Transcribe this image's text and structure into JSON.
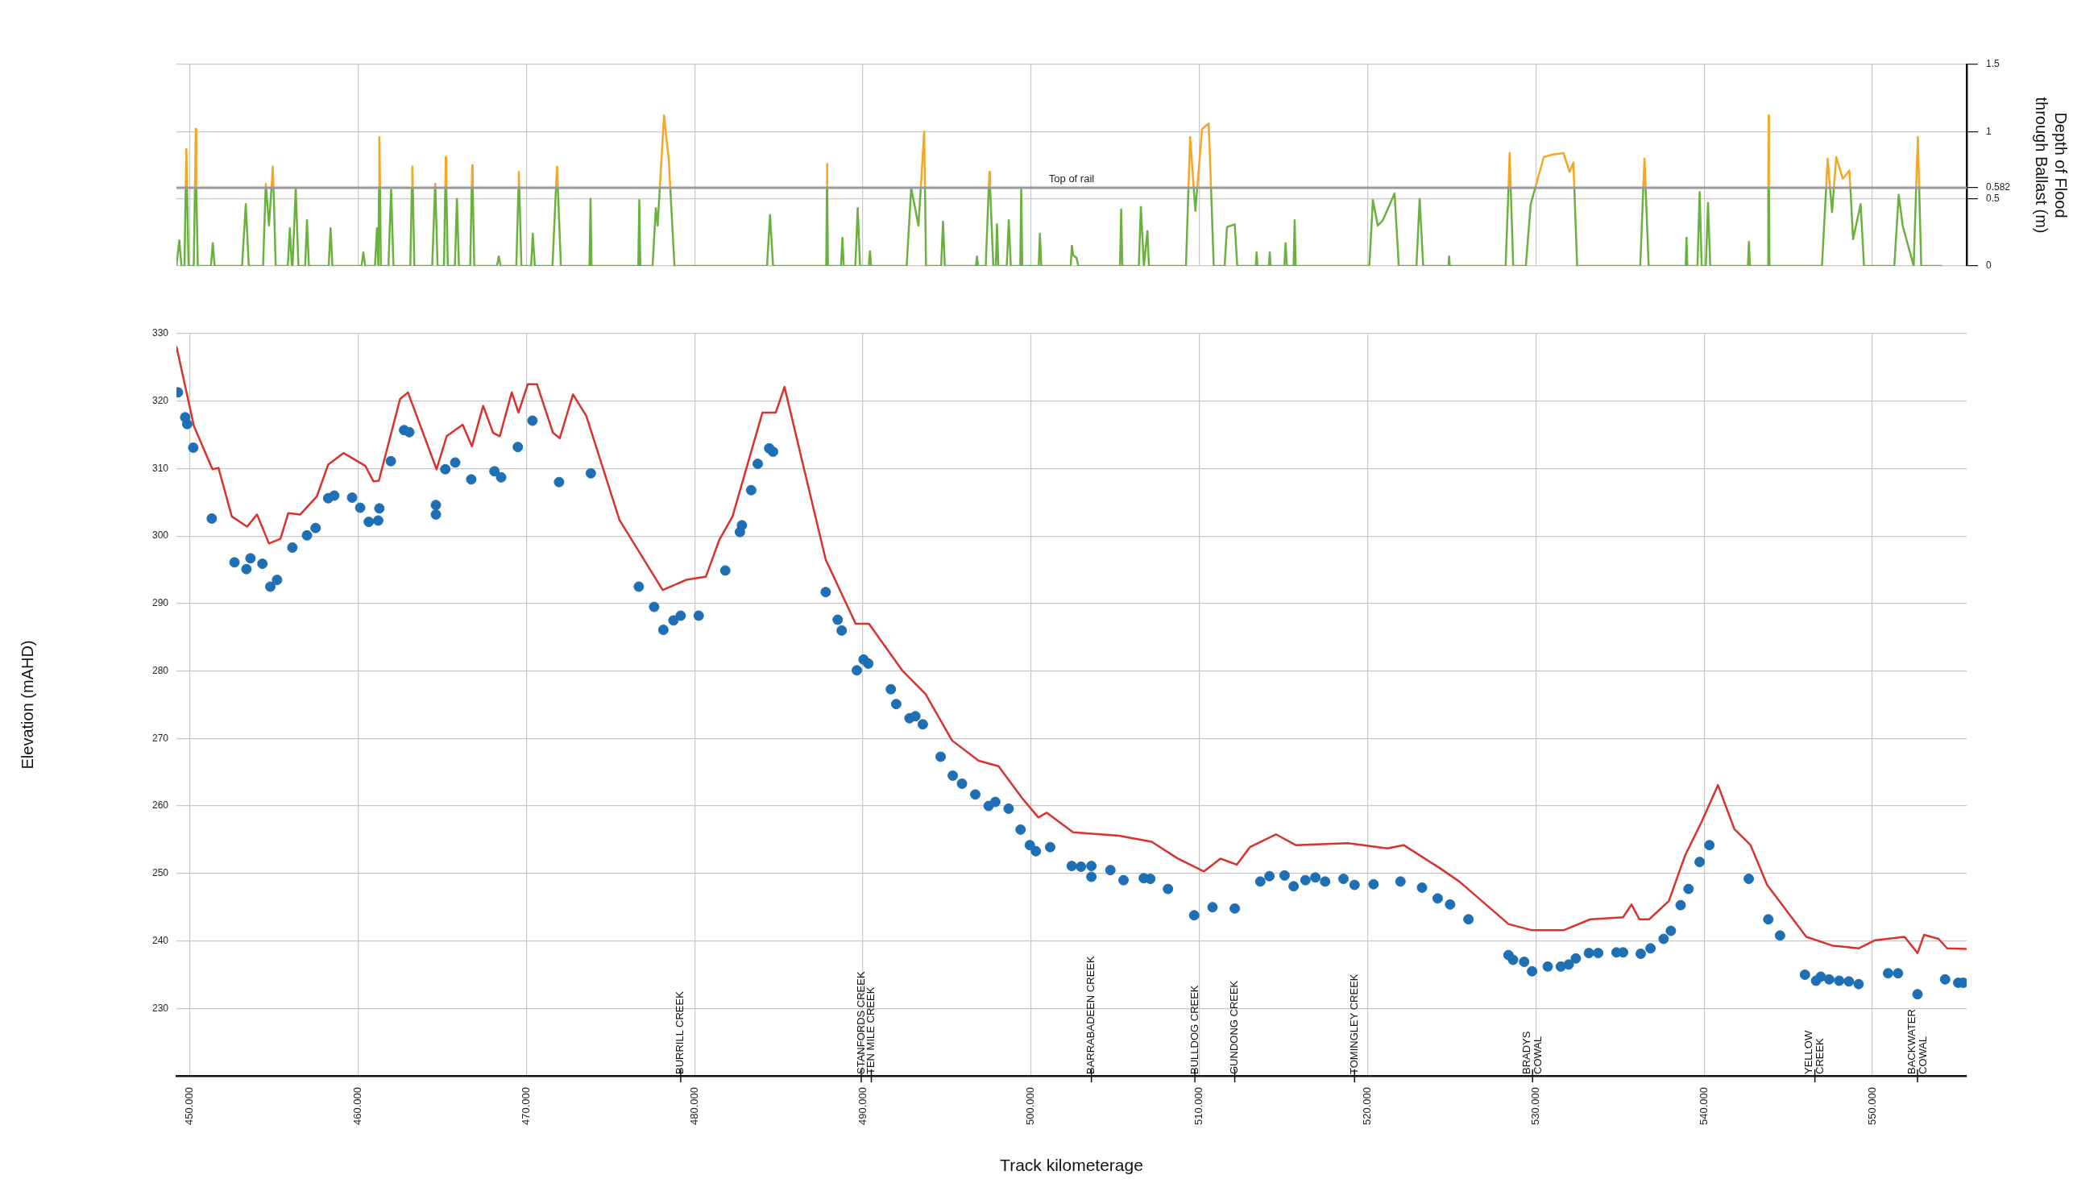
{
  "chart_data": [
    {
      "type": "line",
      "ylabel": "Depth of Flood through Ballast (m)",
      "xlim": [
        449.2,
        555.6
      ],
      "ylim": [
        0,
        1.5
      ],
      "xticks": [
        450,
        460,
        470,
        480,
        490,
        500,
        510,
        520,
        530,
        540,
        550
      ],
      "yticks": [
        0,
        0.5,
        0.582,
        1,
        1.5
      ],
      "tick_labels": "y",
      "grid": true,
      "ref_lines": [
        {
          "axis": "y",
          "value": 0.582,
          "label": "Top of rail",
          "color": "#9a9a9a"
        }
      ],
      "x": [
        449.2,
        449.37,
        449.5,
        449.68,
        449.75,
        449.79,
        449.83,
        449.92,
        450.23,
        450.3,
        450.35,
        450.38,
        450.47,
        451.25,
        451.36,
        451.47,
        453.1,
        453.32,
        453.5,
        454.35,
        454.5,
        454.51,
        454.53,
        454.7,
        454.85,
        454.93,
        454.97,
        455.1,
        455.82,
        455.94,
        456.06,
        456.1,
        456.29,
        456.45,
        456.85,
        456.96,
        457.07,
        458.25,
        458.36,
        458.47,
        460.2,
        460.31,
        460.42,
        461.0,
        461.12,
        461.2,
        461.24,
        461.26,
        461.3,
        461.35,
        461.8,
        461.96,
        462.1,
        463.1,
        463.19,
        463.22,
        463.25,
        463.34,
        464.4,
        464.57,
        464.58,
        464.59,
        464.72,
        465.1,
        465.18,
        465.21,
        465.24,
        465.33,
        465.75,
        465.87,
        465.99,
        466.66,
        466.75,
        466.78,
        466.81,
        466.9,
        468.25,
        468.36,
        468.47,
        469.4,
        469.53,
        469.55,
        469.58,
        469.7,
        470.28,
        470.38,
        470.5,
        471.55,
        471.76,
        471.82,
        471.87,
        472.05,
        473.75,
        473.81,
        473.87,
        476.65,
        476.71,
        476.77,
        477.5,
        477.69,
        477.8,
        477.93,
        478.18,
        478.46,
        478.55,
        478.8,
        484.3,
        484.48,
        484.66,
        487.82,
        487.86,
        487.87,
        487.88,
        487.92,
        488.7,
        488.78,
        488.86,
        489.55,
        489.69,
        489.83,
        490.35,
        490.42,
        490.49,
        492.6,
        492.87,
        493.3,
        493.44,
        493.64,
        493.69,
        493.75,
        494.65,
        494.76,
        494.87,
        496.72,
        496.78,
        496.84,
        497.3,
        497.48,
        497.52,
        497.56,
        497.75,
        497.9,
        497.97,
        498.05,
        498.55,
        498.67,
        498.79,
        499.35,
        499.41,
        499.47,
        500.45,
        500.52,
        500.6,
        502.35,
        502.42,
        502.5,
        502.7,
        502.8,
        505.28,
        505.35,
        505.42,
        506.4,
        506.52,
        506.7,
        506.91,
        507.0,
        509.2,
        509.35,
        509.45,
        509.66,
        509.76,
        509.87,
        510.16,
        510.55,
        510.69,
        510.85,
        511.5,
        511.64,
        512.1,
        512.25,
        513.35,
        513.4,
        513.45,
        514.13,
        514.18,
        514.23,
        515.05,
        515.12,
        515.2,
        515.6,
        515.66,
        515.72,
        520.1,
        520.31,
        520.6,
        520.9,
        521.6,
        521.85,
        522.9,
        523.09,
        523.3,
        524.8,
        524.84,
        524.88,
        528.2,
        528.37,
        528.44,
        528.5,
        528.65,
        529.4,
        529.69,
        529.96,
        530.0,
        530.47,
        531.0,
        531.64,
        532.0,
        532.23,
        532.28,
        532.45,
        536.2,
        536.38,
        536.45,
        536.52,
        536.7,
        538.9,
        538.95,
        539.0,
        539.6,
        539.73,
        539.85,
        540.1,
        540.23,
        540.36,
        542.6,
        542.66,
        542.72,
        543.78,
        543.81,
        543.83,
        543.85,
        543.88,
        547.0,
        547.25,
        547.34,
        547.48,
        547.6,
        547.71,
        547.85,
        548.24,
        548.63,
        548.69,
        548.85,
        549.3,
        549.5,
        551.3,
        551.56,
        551.8,
        552.45,
        552.6,
        552.7,
        552.78,
        552.9,
        554.1
      ],
      "series": [
        {
          "type": "line",
          "color": "#6ab23e",
          "values": [
            0,
            0.19,
            0,
            0,
            0.582,
            null,
            0.582,
            0,
            0,
            0.582,
            null,
            0.582,
            0,
            0,
            0.17,
            0,
            0,
            0.46,
            0,
            0,
            0.582,
            null,
            0.582,
            0.3,
            0.582,
            null,
            0.582,
            0,
            0,
            0.28,
            0,
            0,
            0.58,
            0,
            0,
            0.34,
            0,
            0,
            0.28,
            0,
            0,
            0.1,
            0,
            0,
            0.28,
            0,
            0.582,
            null,
            0.582,
            0,
            0,
            0.57,
            0,
            0,
            0.582,
            null,
            0.582,
            0,
            0,
            0.582,
            null,
            0.582,
            0,
            0,
            0.582,
            null,
            0.582,
            0,
            0,
            0.5,
            0,
            0,
            0.582,
            null,
            0.582,
            0,
            0,
            0.07,
            0,
            0,
            0.582,
            null,
            0.582,
            0,
            0,
            0.24,
            0,
            0,
            0.582,
            null,
            0.582,
            0,
            0,
            0.5,
            0,
            0,
            0.49,
            0,
            0,
            0.43,
            0.3,
            0.582,
            null,
            null,
            0.582,
            0,
            0,
            0.38,
            0,
            0,
            0.582,
            null,
            0.582,
            0,
            0,
            0.21,
            0,
            0,
            0.43,
            0,
            0,
            0.11,
            0,
            0,
            0.58,
            0.3,
            0.582,
            null,
            0.582,
            0,
            0,
            0.33,
            0,
            0,
            0.07,
            0,
            0,
            0.582,
            null,
            0.582,
            0,
            0,
            0.31,
            0,
            0,
            0.34,
            0,
            0,
            0.58,
            0,
            0,
            0.24,
            0,
            0,
            0.15,
            0.08,
            0.06,
            0,
            0,
            0.42,
            0,
            0,
            0.44,
            0,
            0.26,
            0,
            0,
            0.582,
            null,
            0.582,
            0.41,
            0.582,
            null,
            null,
            0.582,
            0,
            0,
            0.29,
            0.31,
            0,
            0,
            0.1,
            0,
            0,
            0.1,
            0,
            0,
            0.17,
            0,
            0,
            0.34,
            0,
            0,
            0.49,
            0.3,
            0.34,
            0.54,
            0,
            0,
            0.5,
            0,
            0,
            0.07,
            0,
            0,
            0.582,
            null,
            0.582,
            0,
            0,
            0.46,
            0.582,
            null,
            null,
            null,
            null,
            null,
            null,
            0.582,
            0,
            0,
            0.582,
            null,
            0.582,
            0,
            0,
            0.21,
            0,
            0,
            0.55,
            0,
            0,
            0.47,
            0,
            0,
            0.18,
            0,
            0,
            0.582,
            null,
            0.582,
            0,
            0,
            0.582,
            null,
            0.582,
            0.4,
            0.582,
            null,
            null,
            null,
            0.582,
            0.2,
            0.46,
            0,
            0,
            0.53,
            0.3,
            0,
            0.582,
            null,
            0.582,
            0,
            0
          ]
        },
        {
          "type": "line",
          "color": "#f5a623",
          "values": [
            null,
            null,
            null,
            null,
            0.582,
            0.87,
            0.582,
            null,
            null,
            0.582,
            1.02,
            0.582,
            null,
            null,
            null,
            null,
            null,
            null,
            null,
            null,
            0.582,
            0.61,
            0.582,
            null,
            0.582,
            0.74,
            0.582,
            null,
            null,
            null,
            null,
            null,
            null,
            null,
            null,
            null,
            null,
            null,
            null,
            null,
            null,
            null,
            null,
            null,
            null,
            null,
            0.582,
            0.96,
            0.582,
            null,
            null,
            null,
            null,
            null,
            0.582,
            0.74,
            0.582,
            null,
            null,
            0.582,
            0.61,
            0.582,
            null,
            null,
            0.582,
            0.81,
            0.582,
            null,
            null,
            null,
            null,
            null,
            0.582,
            0.75,
            0.582,
            null,
            null,
            null,
            null,
            null,
            0.582,
            0.7,
            0.582,
            null,
            null,
            null,
            null,
            null,
            0.582,
            0.74,
            0.582,
            null,
            null,
            null,
            null,
            null,
            null,
            null,
            null,
            null,
            null,
            0.582,
            1.12,
            0.79,
            0.582,
            null,
            null,
            null,
            null,
            null,
            0.582,
            0.76,
            0.582,
            null,
            null,
            null,
            null,
            null,
            null,
            null,
            null,
            null,
            null,
            null,
            null,
            null,
            0.582,
            1.0,
            0.582,
            null,
            null,
            null,
            null,
            null,
            null,
            null,
            null,
            0.582,
            0.7,
            0.582,
            null,
            null,
            null,
            null,
            null,
            null,
            null,
            null,
            null,
            null,
            null,
            null,
            null,
            null,
            null,
            null,
            null,
            null,
            null,
            null,
            null,
            null,
            null,
            null,
            null,
            null,
            null,
            0.582,
            0.96,
            0.582,
            null,
            0.582,
            1.02,
            1.06,
            0.582,
            null,
            null,
            null,
            null,
            null,
            null,
            null,
            null,
            null,
            null,
            null,
            null,
            null,
            null,
            null,
            null,
            null,
            null,
            null,
            null,
            null,
            null,
            null,
            null,
            null,
            null,
            null,
            null,
            null,
            null,
            0.582,
            0.84,
            0.582,
            null,
            null,
            null,
            0.582,
            0.6,
            0.81,
            0.83,
            0.84,
            0.7,
            0.77,
            0.582,
            null,
            null,
            0.582,
            0.8,
            0.582,
            null,
            null,
            null,
            null,
            null,
            null,
            null,
            null,
            null,
            null,
            null,
            null,
            null,
            null,
            0.582,
            1.12,
            0.582,
            null,
            null,
            0.582,
            0.8,
            0.582,
            null,
            0.582,
            0.81,
            0.65,
            0.71,
            0.582,
            null,
            null,
            null,
            null,
            null,
            null,
            null,
            0.582,
            0.96,
            0.582,
            null,
            null
          ]
        }
      ]
    },
    {
      "type": "line",
      "xlabel": "Track kilometerage",
      "ylabel": "Elevation (mAHD)",
      "xlim": [
        449.2,
        555.6
      ],
      "ylim": [
        220,
        330
      ],
      "xticks": [
        {
          "value": 450,
          "label": "450.000"
        },
        {
          "value": 460,
          "label": "460.000"
        },
        {
          "value": 470,
          "label": "470.000"
        },
        {
          "value": 480,
          "label": "480.000"
        },
        {
          "value": 490,
          "label": "490.000"
        },
        {
          "value": 500,
          "label": "500.000"
        },
        {
          "value": 510,
          "label": "510.000"
        },
        {
          "value": 520,
          "label": "520.000"
        },
        {
          "value": 530,
          "label": "530.000"
        },
        {
          "value": 540,
          "label": "540.000"
        },
        {
          "value": 550,
          "label": "550.000"
        }
      ],
      "yticks": [
        230,
        240,
        250,
        260,
        270,
        280,
        290,
        300,
        310,
        320,
        330
      ],
      "grid": true,
      "series": [
        {
          "type": "line",
          "color": "#d9312b",
          "x": [
            449.21,
            450.24,
            451.34,
            451.7,
            452.49,
            453.4,
            453.99,
            454.7,
            455.38,
            455.85,
            456.56,
            457.55,
            458.22,
            459.13,
            460.43,
            460.91,
            461.23,
            462.49,
            462.96,
            464.66,
            465.26,
            466.21,
            466.76,
            467.43,
            468.02,
            468.42,
            469.13,
            469.53,
            470.08,
            470.63,
            471.58,
            471.98,
            472.77,
            473.56,
            475.53,
            478.1,
            479.49,
            480.67,
            481.46,
            482.25,
            484.03,
            484.82,
            485.34,
            487.79,
            489.57,
            490.36,
            492.33,
            493.72,
            495.3,
            496.88,
            498.06,
            499.45,
            500.43,
            500.93,
            502.49,
            505.21,
            507.16,
            508.72,
            510.27,
            511.25,
            512.22,
            513.0,
            514.55,
            515.72,
            518.83,
            521.17,
            522.14,
            524.28,
            525.45,
            528.37,
            529.73,
            531.67,
            533.23,
            535.18,
            535.68,
            536.15,
            536.73,
            537.9,
            538.87,
            539.84,
            540.82,
            541.79,
            542.76,
            543.74,
            546.07,
            547.63,
            549.18,
            550.16,
            551.91,
            552.68,
            553.07,
            553.93,
            554.44,
            555.55
          ],
          "values": [
            328.0,
            316.3,
            309.9,
            310.1,
            302.9,
            301.4,
            303.2,
            298.9,
            299.6,
            303.4,
            303.2,
            305.9,
            310.6,
            312.3,
            310.4,
            308.1,
            308.2,
            320.3,
            321.3,
            309.9,
            314.8,
            316.5,
            313.3,
            319.3,
            315.3,
            314.8,
            321.3,
            318.3,
            322.5,
            322.5,
            315.3,
            314.5,
            321.0,
            317.8,
            302.4,
            292.0,
            293.5,
            294.0,
            299.4,
            302.9,
            318.3,
            318.3,
            322.1,
            296.5,
            287.0,
            287.0,
            280.1,
            276.6,
            269.7,
            266.7,
            265.9,
            261.2,
            258.3,
            259.0,
            256.1,
            255.6,
            254.7,
            252.2,
            250.3,
            252.2,
            251.3,
            253.9,
            255.8,
            254.2,
            254.5,
            253.7,
            254.2,
            250.8,
            248.8,
            242.5,
            241.6,
            241.6,
            243.2,
            243.5,
            245.4,
            243.2,
            243.2,
            245.9,
            252.7,
            257.6,
            263.1,
            256.6,
            254.2,
            248.3,
            240.6,
            239.3,
            238.9,
            240.1,
            240.6,
            238.2,
            240.9,
            240.3,
            238.9,
            238.8
          ]
        },
        {
          "type": "scatter",
          "color": "#1f6fb5",
          "marker": "circle",
          "x": [
            449.29,
            449.72,
            449.84,
            450.2,
            451.3,
            452.65,
            453.36,
            453.6,
            454.31,
            454.78,
            455.18,
            456.09,
            456.96,
            457.47,
            458.22,
            458.58,
            459.64,
            460.12,
            460.63,
            461.19,
            461.26,
            461.94,
            462.73,
            463.04,
            464.62,
            464.62,
            465.18,
            465.77,
            466.72,
            468.1,
            468.5,
            469.49,
            470.36,
            471.94,
            473.83,
            476.68,
            477.59,
            478.14,
            478.74,
            479.17,
            480.24,
            481.82,
            482.69,
            482.81,
            483.36,
            483.75,
            484.43,
            484.66,
            487.79,
            488.5,
            488.74,
            489.64,
            490.04,
            490.32,
            491.66,
            491.98,
            492.77,
            493.12,
            493.56,
            494.62,
            495.34,
            495.89,
            496.68,
            497.47,
            497.87,
            498.66,
            499.37,
            499.92,
            500.28,
            501.13,
            502.41,
            502.96,
            503.58,
            503.58,
            504.71,
            505.49,
            506.69,
            507.08,
            508.13,
            509.69,
            510.78,
            512.1,
            513.62,
            514.16,
            515.06,
            515.6,
            516.3,
            516.89,
            517.47,
            518.56,
            519.22,
            520.35,
            521.95,
            523.23,
            524.16,
            524.9,
            525.99,
            528.37,
            528.64,
            529.3,
            529.77,
            530.7,
            531.48,
            531.95,
            532.37,
            533.15,
            533.7,
            534.79,
            535.18,
            536.23,
            536.81,
            537.59,
            538.02,
            538.6,
            539.07,
            539.73,
            540.31,
            542.65,
            543.81,
            544.51,
            545.99,
            546.65,
            546.93,
            547.43,
            548.02,
            548.6,
            549.18,
            550.93,
            551.52,
            552.68,
            554.32,
            555.1,
            555.4
          ],
          "values": [
            321.3,
            317.6,
            316.6,
            313.1,
            302.6,
            296.1,
            295.1,
            296.7,
            295.9,
            292.5,
            293.5,
            298.3,
            300.1,
            301.2,
            305.6,
            306.0,
            305.7,
            304.2,
            302.1,
            302.3,
            304.1,
            311.1,
            315.7,
            315.4,
            304.6,
            303.2,
            309.9,
            310.9,
            308.4,
            309.6,
            308.7,
            313.2,
            317.1,
            308.0,
            309.3,
            292.5,
            289.5,
            286.1,
            287.5,
            288.2,
            288.2,
            294.9,
            300.6,
            301.6,
            306.8,
            310.7,
            313.0,
            312.5,
            291.7,
            287.6,
            286.0,
            280.1,
            281.7,
            281.1,
            277.3,
            275.1,
            273.0,
            273.3,
            272.1,
            267.3,
            264.5,
            263.3,
            261.7,
            260.0,
            260.6,
            259.6,
            256.5,
            254.2,
            253.3,
            253.9,
            251.1,
            251.0,
            251.1,
            249.5,
            250.5,
            249.0,
            249.3,
            249.2,
            247.7,
            243.8,
            245.0,
            244.8,
            248.8,
            249.6,
            249.7,
            248.1,
            249.0,
            249.4,
            248.8,
            249.2,
            248.3,
            248.4,
            248.8,
            247.9,
            246.3,
            245.4,
            243.2,
            237.9,
            237.2,
            236.9,
            235.5,
            236.2,
            236.2,
            236.5,
            237.4,
            238.2,
            238.2,
            238.3,
            238.3,
            238.1,
            238.9,
            240.3,
            241.5,
            245.3,
            247.7,
            251.7,
            254.2,
            249.2,
            243.2,
            240.8,
            235.0,
            234.1,
            234.7,
            234.3,
            234.1,
            234.0,
            233.6,
            235.2,
            235.2,
            232.1,
            234.3,
            233.8,
            233.8
          ]
        }
      ],
      "annotations": [
        {
          "text": "BURRILL CREEK",
          "x": 479.17
        },
        {
          "text": "STANFORDS CREEK",
          "x": 489.9
        },
        {
          "text": "TEN MILE CREEK",
          "x": 490.5
        },
        {
          "text": "BARRABADEEN CREEK",
          "x": 503.58
        },
        {
          "text": "BULLDOG CREEK",
          "x": 509.73
        },
        {
          "text": "GUNDONG CREEK",
          "x": 512.1
        },
        {
          "text": "TOMINGLEY CREEK",
          "x": 519.22
        },
        {
          "text": "BRADYS\nCOWAL",
          "x": 529.8
        },
        {
          "text": "YELLOW\nCREEK",
          "x": 546.58
        },
        {
          "text": "BACKWATER\nCOWAL",
          "x": 552.68
        }
      ]
    }
  ]
}
